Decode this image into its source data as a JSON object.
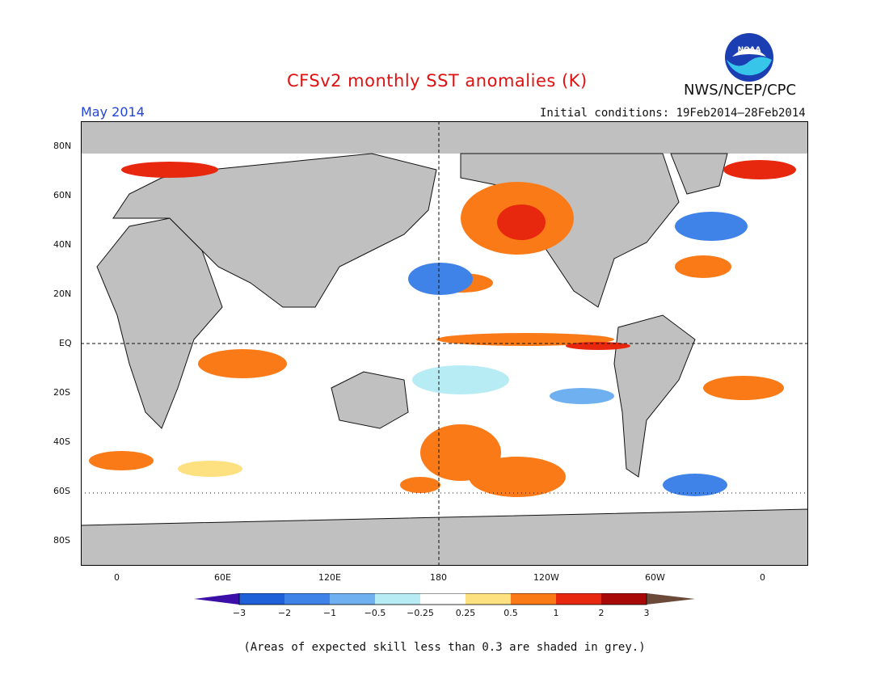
{
  "title": "CFSv2 monthly SST anomalies (K)",
  "month": "May 2014",
  "agency": "NWS/NCEP/CPC",
  "initial_conditions": "Initial conditions: 19Feb2014–28Feb2014",
  "logo_text": "NOAA",
  "lat_labels": [
    "80N",
    "60N",
    "40N",
    "20N",
    "EQ",
    "20S",
    "40S",
    "60S",
    "80S"
  ],
  "lon_labels": [
    "0",
    "60E",
    "120E",
    "180",
    "120W",
    "60W",
    "0"
  ],
  "colorbar": {
    "labels": [
      "−3",
      "−2",
      "−1",
      "−0.5",
      "−0.25",
      "0.25",
      "0.5",
      "1",
      "2",
      "3"
    ],
    "colors": [
      "#3b0fa8",
      "#1f5fd8",
      "#3f82e8",
      "#6fb0f0",
      "#b8ecf5",
      "#ffffff",
      "#fde080",
      "#fb7a18",
      "#e8280e",
      "#a80808",
      "#6b4a3a"
    ]
  },
  "note": "(Areas of expected skill less than 0.3 are shaded in grey.)",
  "colors": {
    "land": "#c0c0c0",
    "title": "#e01010",
    "month": "#2244dd"
  }
}
